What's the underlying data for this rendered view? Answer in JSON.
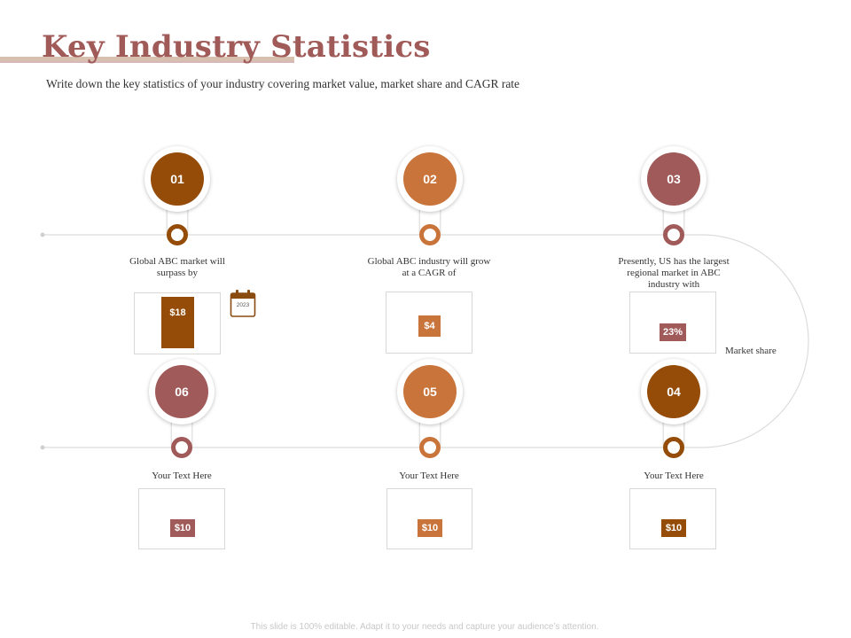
{
  "slide": {
    "title": "Key Industry Statistics",
    "subtitle": "Write down the key statistics of your industry covering market value, market share and CAGR rate",
    "footer": "This slide is 100% editable. Adapt it to your needs and capture your audience’s attention."
  },
  "colors": {
    "brown": "#944c08",
    "orange": "#c8743a",
    "rose": "#a15a5a"
  },
  "items": [
    {
      "number": "01",
      "description": "Global ABC market will surpass by",
      "value": "$18",
      "bar_level": 1.0
    },
    {
      "number": "02",
      "description": "Global ABC industry will grow at a CAGR of",
      "value": "$4"
    },
    {
      "number": "03",
      "description": "Presently, US has the largest regional market in ABC industry with",
      "value": "23%"
    },
    {
      "number": "04",
      "description": "Your Text Here",
      "value": "$10"
    },
    {
      "number": "05",
      "description": "Your Text Here",
      "value": "$10"
    },
    {
      "number": "06",
      "description": "Your Text Here",
      "value": "$10"
    }
  ],
  "calendar": {
    "icon": "calendar-icon",
    "year": "2023"
  },
  "market_share_label": "Market share"
}
